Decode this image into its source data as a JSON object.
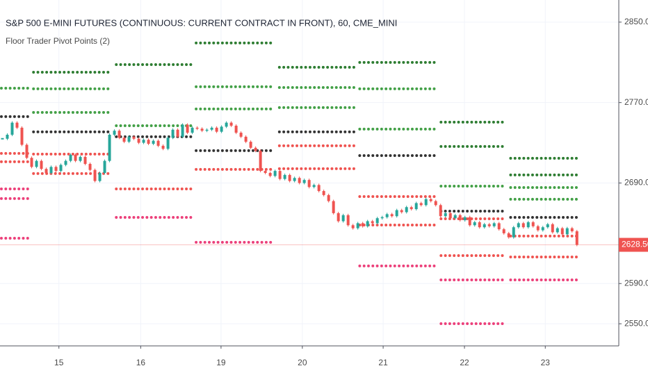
{
  "chart_data": {
    "type": "candlestick",
    "title": "S&P 500 E-MINI FUTURES (CONTINUOUS: CURRENT CONTRACT IN FRONT), 60, CME_MINI",
    "subtitle": "Floor Trader Pivot Points (2)",
    "xlim": [
      0,
      127.1
    ],
    "xticks": [
      {
        "value": 12.1,
        "label": "15"
      },
      {
        "value": 28.9,
        "label": "16"
      },
      {
        "value": 45.4,
        "label": "19"
      },
      {
        "value": 62.1,
        "label": "20"
      },
      {
        "value": 78.7,
        "label": "21"
      },
      {
        "value": 95.4,
        "label": "22"
      },
      {
        "value": 112,
        "label": "23"
      }
    ],
    "ylim": [
      2528,
      2872
    ],
    "yticks": [
      {
        "value": 2850,
        "label": "2850.00"
      },
      {
        "value": 2770,
        "label": "2770.00"
      },
      {
        "value": 2690,
        "label": "2690.00"
      },
      {
        "value": 2590,
        "label": "2590.00"
      },
      {
        "value": 2550,
        "label": "2550.00"
      }
    ],
    "grid": true,
    "up_color": "#26a69a",
    "down_color": "#ef5350",
    "close": [
      2734,
      2738,
      2750,
      2745,
      2728,
      2715,
      2706,
      2712,
      2704,
      2700,
      2706,
      2702,
      2708,
      2712,
      2718,
      2712,
      2716,
      2709,
      2703,
      2692,
      2700,
      2712,
      2738,
      2742,
      2735,
      2731,
      2736,
      2734,
      2730,
      2733,
      2729,
      2732,
      2727,
      2724,
      2735,
      2743,
      2736,
      2748,
      2740,
      2745,
      2744,
      2742,
      2743,
      2745,
      2741,
      2746,
      2750,
      2747,
      2740,
      2736,
      2731,
      2725,
      2722,
      2702,
      2700,
      2697,
      2702,
      2694,
      2698,
      2692,
      2695,
      2690,
      2693,
      2686,
      2688,
      2682,
      2678,
      2672,
      2660,
      2652,
      2658,
      2648,
      2645,
      2650,
      2647,
      2652,
      2650,
      2655,
      2656,
      2659,
      2657,
      2663,
      2661,
      2666,
      2664,
      2670,
      2668,
      2674,
      2672,
      2668,
      2657,
      2660,
      2655,
      2658,
      2653,
      2656,
      2648,
      2651,
      2646,
      2649,
      2647,
      2650,
      2644,
      2640,
      2636,
      2646,
      2650,
      2646,
      2651,
      2647,
      2643,
      2646,
      2649,
      2641,
      2645,
      2639,
      2645,
      2642,
      2628.5
    ],
    "last_price": {
      "value": 2628.5,
      "label": "2628.50"
    },
    "last_price_color": "#ef5350",
    "pivots": [
      {
        "start": 0,
        "end": 6.4,
        "levels": [
          2784.3,
          2756.0,
          2719.4,
          2711.1,
          2684.1,
          2674.5,
          2635.1
        ],
        "colors": [
          "#43a047",
          "#333333",
          "#ef5350",
          "#ef5350",
          "#ec407a",
          "#ec407a",
          "#ec407a"
        ]
      },
      {
        "start": 6.6,
        "end": 22.9,
        "levels": [
          2800.2,
          2783.7,
          2760.2,
          2740.8,
          2718.7,
          2699.4
        ],
        "colors": [
          "#2e7d32",
          "#43a047",
          "#43a047",
          "#333333",
          "#ef5350",
          "#ef5350"
        ]
      },
      {
        "start": 23.6,
        "end": 40,
        "levels": [
          2807.8,
          2747.0,
          2736.0,
          2684.1,
          2655.8
        ],
        "colors": [
          "#2e7d32",
          "#43a047",
          "#333333",
          "#ef5350",
          "#ec407a"
        ]
      },
      {
        "start": 40,
        "end": 56.4,
        "levels": [
          2829.3,
          2785.7,
          2763.6,
          2722.2,
          2703.5,
          2631.0
        ],
        "colors": [
          "#2e7d32",
          "#43a047",
          "#43a047",
          "#333333",
          "#ef5350",
          "#ec407a"
        ]
      },
      {
        "start": 57.1,
        "end": 73.1,
        "levels": [
          2805.1,
          2785.0,
          2765.0,
          2740.8,
          2727.0,
          2704.2
        ],
        "colors": [
          "#2e7d32",
          "#43a047",
          "#43a047",
          "#333333",
          "#ef5350",
          "#ef5350"
        ]
      },
      {
        "start": 73.6,
        "end": 90,
        "levels": [
          2809.9,
          2783.7,
          2743.6,
          2717.3,
          2676.5,
          2648.2,
          2607.5
        ],
        "colors": [
          "#2e7d32",
          "#43a047",
          "#43a047",
          "#333333",
          "#ef5350",
          "#ef5350",
          "#ec407a"
        ]
      },
      {
        "start": 90.3,
        "end": 103.9,
        "levels": [
          2750.5,
          2726.3,
          2686.9,
          2662.0,
          2654.4,
          2617.8,
          2593.6,
          2550.1
        ],
        "colors": [
          "#2e7d32",
          "#2e7d32",
          "#43a047",
          "#333333",
          "#ef5350",
          "#ef5350",
          "#ec407a",
          "#ec407a"
        ]
      },
      {
        "start": 104.6,
        "end": 118.9,
        "levels": [
          2714.6,
          2698.0,
          2685.5,
          2673.8,
          2655.8,
          2637.2,
          2616.4,
          2593.6
        ],
        "colors": [
          "#2e7d32",
          "#2e7d32",
          "#43a047",
          "#43a047",
          "#333333",
          "#ef5350",
          "#ef5350",
          "#ec407a"
        ]
      }
    ]
  }
}
